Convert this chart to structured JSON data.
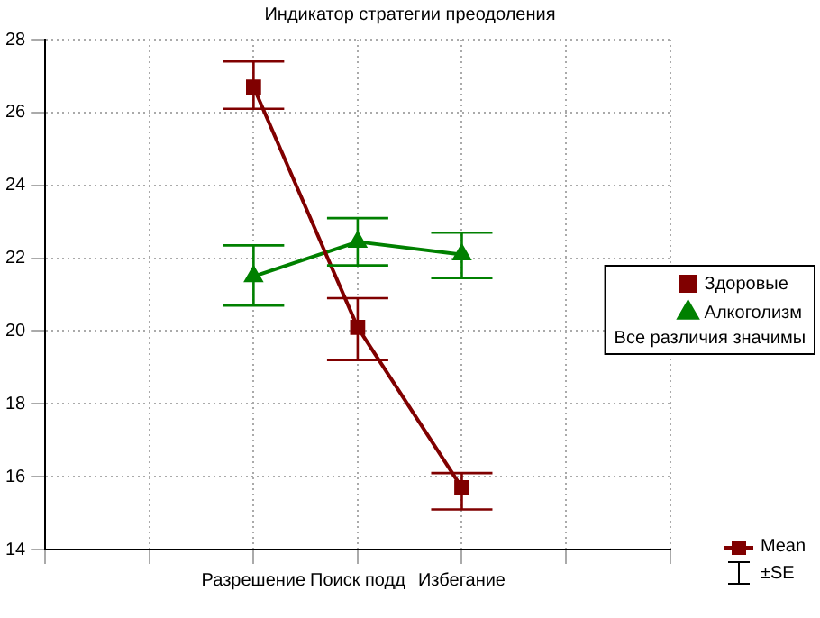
{
  "chart_data": {
    "type": "line",
    "title": "Индикатор стратегии преодоления",
    "categories": [
      null,
      null,
      "Разрешение",
      "Поиск подд",
      "Избегание",
      null,
      null
    ],
    "series": [
      {
        "name": "Здоровые",
        "color": "#800000",
        "marker": "square",
        "values": [
          null,
          null,
          26.7,
          20.1,
          15.7,
          null,
          null
        ],
        "errors": [
          null,
          null,
          [
            26.1,
            27.4
          ],
          [
            19.2,
            20.9
          ],
          [
            15.1,
            16.1
          ],
          null,
          null
        ]
      },
      {
        "name": "Алкоголизм",
        "color": "#008000",
        "marker": "triangle",
        "values": [
          null,
          null,
          21.5,
          22.45,
          22.1,
          null,
          null
        ],
        "errors": [
          null,
          null,
          [
            20.7,
            22.35
          ],
          [
            21.8,
            23.1
          ],
          [
            21.45,
            22.7
          ],
          null,
          null
        ]
      }
    ],
    "ylim": [
      14,
      28
    ],
    "yticks": [
      14,
      16,
      18,
      20,
      22,
      24,
      26,
      28
    ],
    "grid": true,
    "legend": "right",
    "line_style": "solid",
    "annotations": [
      "Все различия значимы",
      "Mean",
      "±SE"
    ]
  }
}
